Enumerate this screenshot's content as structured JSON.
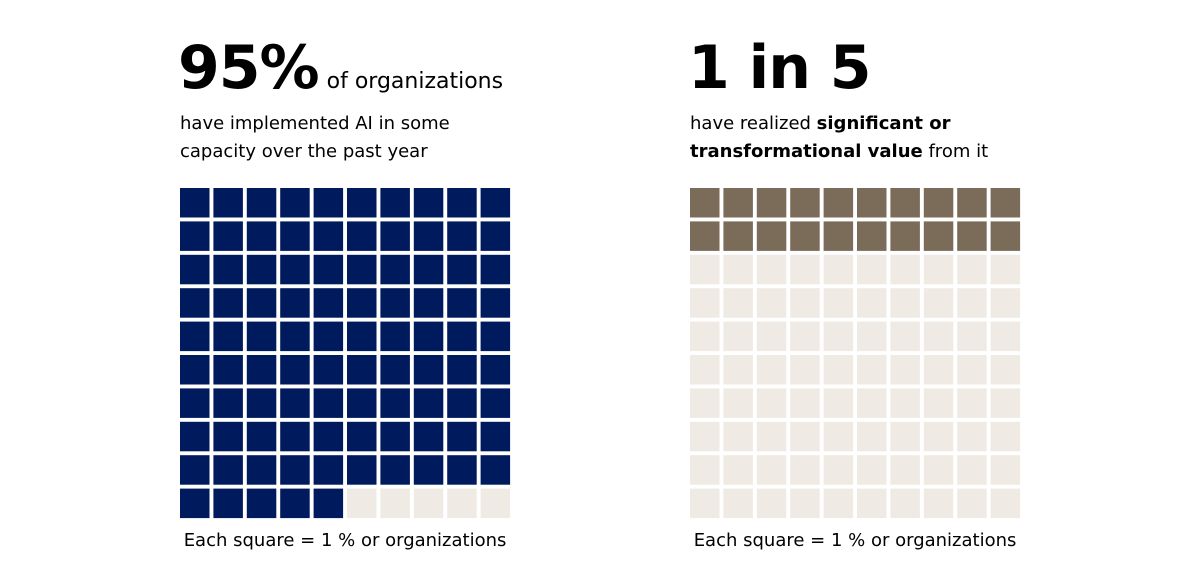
{
  "chart_data": [
    {
      "type": "waffle",
      "values": [
        95
      ],
      "value_labels": [
        "95%"
      ],
      "lead": "of organizations",
      "subtitle": [
        [
          {
            "text": "have implemented AI in some"
          }
        ],
        [
          {
            "text": "capacity over the past year"
          }
        ]
      ],
      "footnote": "Each square = 1 % or organizations",
      "color": "#001a5e",
      "empty_color": "#efebe4"
    },
    {
      "type": "waffle",
      "values": [
        20
      ],
      "value_labels": [
        "1 in 5"
      ],
      "subtitle": [
        [
          {
            "text": "have realized "
          },
          {
            "text": "significant or",
            "bold": true
          }
        ],
        [
          {
            "text": "transformational value",
            "bold": true
          },
          {
            "text": " from it"
          }
        ]
      ],
      "footnote": "Each square = 1 % or organizations",
      "color": "#7b6c5a",
      "empty_color": "#efebe4"
    }
  ]
}
